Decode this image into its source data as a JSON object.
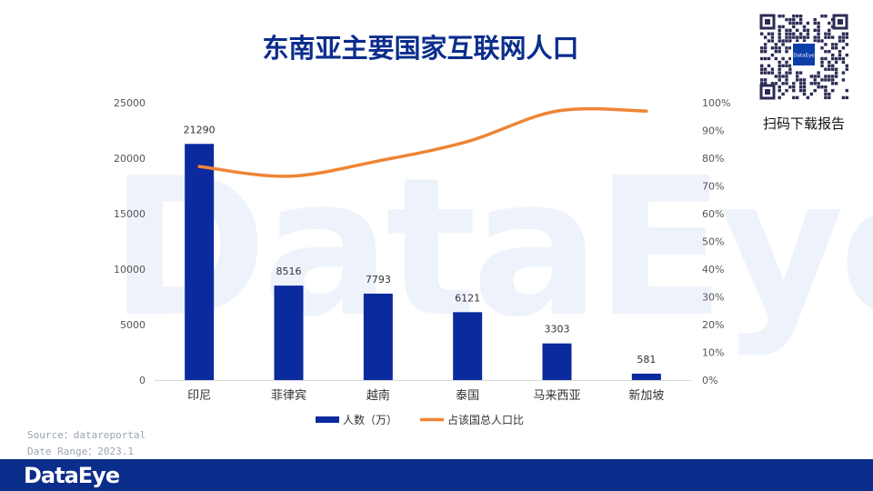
{
  "watermark": "DataEye",
  "qr": {
    "center_label": "DataEye",
    "caption": "扫码下载报告"
  },
  "source": {
    "line1": "Source：datareportal",
    "line2": "Date Range：2023.1"
  },
  "footer": {
    "logo": "DataEye"
  },
  "colors": {
    "bar": "#0b2a9e",
    "line": "#ee8535",
    "title": "#0b2d8c",
    "footer": "#0b2d8c"
  },
  "chart_data": {
    "type": "bar",
    "title": "东南亚主要国家互联网人口",
    "categories": [
      "印尼",
      "菲律宾",
      "越南",
      "泰国",
      "马来西亚",
      "新加坡"
    ],
    "series": [
      {
        "name": "人数（万）",
        "type": "bar",
        "axis": "left",
        "values": [
          21290,
          8516,
          7793,
          6121,
          3303,
          581
        ]
      },
      {
        "name": "占该国总人口比",
        "type": "line",
        "axis": "right",
        "values": [
          77,
          73.5,
          79,
          86,
          97,
          97
        ]
      }
    ],
    "y_left": {
      "ticks": [
        "0",
        "5000",
        "10000",
        "15000",
        "20000",
        "25000"
      ],
      "range": [
        0,
        25000
      ]
    },
    "y_right": {
      "ticks": [
        "0%",
        "10%",
        "20%",
        "30%",
        "40%",
        "50%",
        "60%",
        "70%",
        "80%",
        "90%",
        "100%"
      ],
      "range": [
        0,
        100
      ]
    },
    "legend": "bottom",
    "grid": false
  }
}
